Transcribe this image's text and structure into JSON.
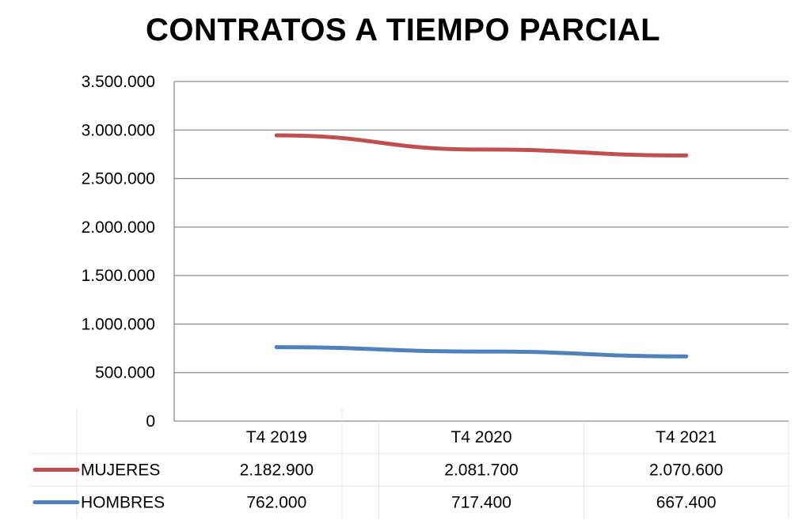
{
  "chart_data": {
    "type": "line",
    "title": "CONTRATOS A TIEMPO PARCIAL",
    "categories": [
      "T4 2019",
      "T4 2020",
      "T4 2021"
    ],
    "series": [
      {
        "name": "MUJERES",
        "color": "#c0504d",
        "plotted_values": [
          2944900,
          2799100,
          2738000
        ],
        "table_values": [
          "2.182.900",
          "2.081.700",
          "2.070.600"
        ]
      },
      {
        "name": "HOMBRES",
        "color": "#4f81bd",
        "plotted_values": [
          762000,
          717400,
          667400
        ],
        "table_values": [
          "762.000",
          "717.400",
          "667.400"
        ]
      }
    ],
    "ylim": [
      0,
      3500000
    ],
    "yticks": [
      0,
      500000,
      1000000,
      1500000,
      2000000,
      2500000,
      3000000,
      3500000
    ],
    "ytick_labels": [
      "0",
      "500.000",
      "1.000.000",
      "1.500.000",
      "2.000.000",
      "2.500.000",
      "3.000.000",
      "3.500.000"
    ],
    "grid": true,
    "legend": "data-table"
  }
}
